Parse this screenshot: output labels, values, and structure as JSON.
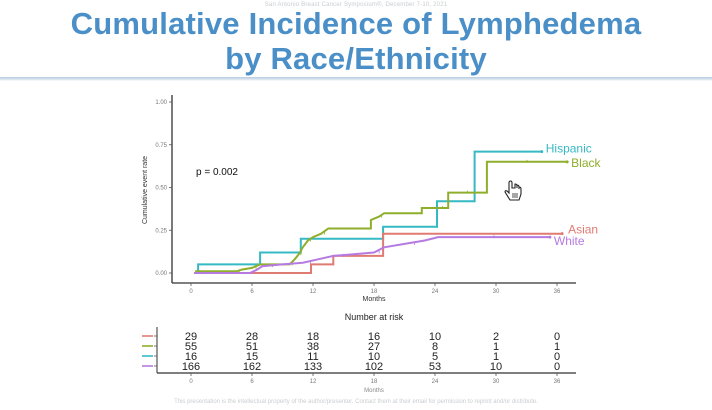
{
  "header": {
    "conference": "San Antonio Breast Cancer Symposium®, December 7-10, 2021",
    "title_line1": "Cumulative Incidence of Lymphedema",
    "title_line2": "by Race/Ethnicity"
  },
  "footer": {
    "text": "This presentation is the intellectual property of the author/presenter. Contact them at their email for permission to reprint and/or distribute."
  },
  "colors": {
    "title": "#4a8fc7",
    "asian": "#e07b72",
    "black": "#8fae2c",
    "hispanic": "#35b9c4",
    "white": "#b57be0"
  },
  "chart_data": {
    "type": "line",
    "title": "Cumulative Incidence of Lymphedema by Race/Ethnicity",
    "xlabel": "Months",
    "ylabel": "Cumulative event rate",
    "xlim": [
      0,
      36
    ],
    "ylim": [
      0,
      1
    ],
    "xticks": [
      "0",
      "6",
      "12",
      "18",
      "24",
      "30",
      "36"
    ],
    "yticks": [
      "0.00",
      "0.25",
      "0.50",
      "0.75",
      "1.00"
    ],
    "annotation": "p = 0.002",
    "step": true,
    "series": [
      {
        "name": "Hispanic",
        "color": "#35b9c4",
        "points": [
          [
            0.3,
            0
          ],
          [
            0.7,
            0
          ],
          [
            0.7,
            0.05
          ],
          [
            6.8,
            0.05
          ],
          [
            6.8,
            0.12
          ],
          [
            10.8,
            0.12
          ],
          [
            10.8,
            0.2
          ],
          [
            18.9,
            0.2
          ],
          [
            18.9,
            0.27
          ],
          [
            24.2,
            0.27
          ],
          [
            24.2,
            0.42
          ],
          [
            27.9,
            0.42
          ],
          [
            27.9,
            0.71
          ],
          [
            34.5,
            0.71
          ]
        ]
      },
      {
        "name": "Black",
        "color": "#8fae2c",
        "points": [
          [
            0.3,
            0
          ],
          [
            0.5,
            0
          ],
          [
            0.5,
            0.01
          ],
          [
            4.5,
            0.01
          ],
          [
            5,
            0.02
          ],
          [
            6,
            0.03
          ],
          [
            6.8,
            0.05
          ],
          [
            9.7,
            0.05
          ],
          [
            10.2,
            0.08
          ],
          [
            10.6,
            0.11
          ],
          [
            11,
            0.15
          ],
          [
            11.5,
            0.19
          ],
          [
            12,
            0.21
          ],
          [
            12.8,
            0.23
          ],
          [
            13.5,
            0.26
          ],
          [
            17.7,
            0.26
          ],
          [
            17.7,
            0.31
          ],
          [
            18.5,
            0.33
          ],
          [
            19,
            0.35
          ],
          [
            22.7,
            0.35
          ],
          [
            22.7,
            0.38
          ],
          [
            24.2,
            0.38
          ],
          [
            25.3,
            0.38
          ],
          [
            25.3,
            0.47
          ],
          [
            29.1,
            0.47
          ],
          [
            29.1,
            0.65
          ],
          [
            37,
            0.65
          ]
        ]
      },
      {
        "name": "Asian",
        "color": "#e07b72",
        "points": [
          [
            0.3,
            0
          ],
          [
            11.8,
            0
          ],
          [
            11.8,
            0.05
          ],
          [
            14,
            0.05
          ],
          [
            14,
            0.1
          ],
          [
            18.9,
            0.1
          ],
          [
            18.9,
            0.23
          ],
          [
            36.5,
            0.23
          ]
        ]
      },
      {
        "name": "White",
        "color": "#b57be0",
        "points": [
          [
            0.3,
            0
          ],
          [
            5.8,
            0
          ],
          [
            6.5,
            0.02
          ],
          [
            7,
            0.04
          ],
          [
            9,
            0.05
          ],
          [
            11,
            0.06
          ],
          [
            12.5,
            0.08
          ],
          [
            14,
            0.1
          ],
          [
            16,
            0.11
          ],
          [
            18,
            0.12
          ],
          [
            19,
            0.15
          ],
          [
            21,
            0.17
          ],
          [
            23,
            0.19
          ],
          [
            24.3,
            0.21
          ],
          [
            35.3,
            0.21
          ]
        ]
      }
    ],
    "risk_table": {
      "title": "Number at risk",
      "xlabel": "Months",
      "times": [
        0,
        6,
        12,
        18,
        24,
        30,
        36
      ],
      "rows": [
        {
          "name": "Asian",
          "color": "#e07b72",
          "values": [
            "29",
            "28",
            "18",
            "16",
            "10",
            "2",
            "0"
          ]
        },
        {
          "name": "Black",
          "color": "#8fae2c",
          "values": [
            "55",
            "51",
            "38",
            "27",
            "8",
            "1",
            "1"
          ]
        },
        {
          "name": "Hispanic",
          "color": "#35b9c4",
          "values": [
            "16",
            "15",
            "11",
            "10",
            "5",
            "1",
            "0"
          ]
        },
        {
          "name": "White",
          "color": "#b57be0",
          "values": [
            "166",
            "162",
            "133",
            "102",
            "53",
            "10",
            "0"
          ]
        }
      ]
    }
  }
}
